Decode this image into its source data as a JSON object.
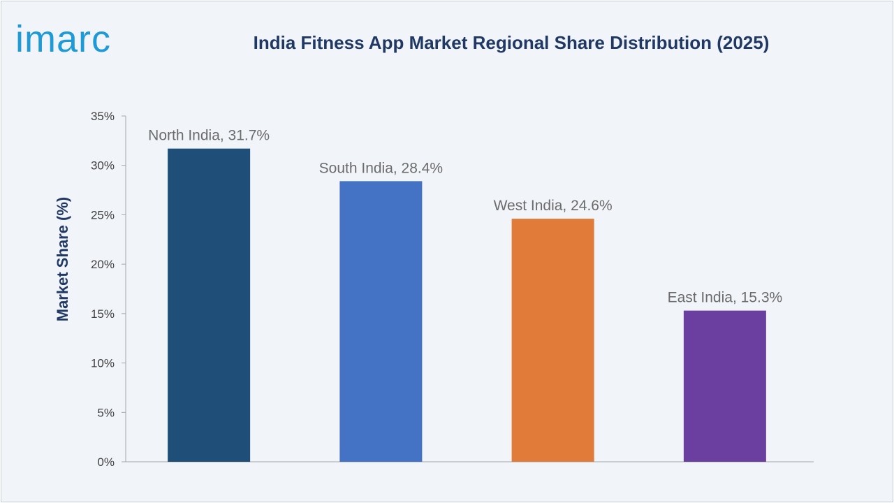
{
  "brand": {
    "logo_text": "imarc",
    "logo_color": "#1e9ad6"
  },
  "chart_data": {
    "type": "bar",
    "title": "India Fitness App Market Regional Share Distribution (2025)",
    "ylabel": "Market Share (%)",
    "xlabel": "",
    "ylim": [
      0,
      35
    ],
    "yticks": [
      0,
      5,
      10,
      15,
      20,
      25,
      30,
      35
    ],
    "ytick_labels": [
      "0%",
      "5%",
      "10%",
      "15%",
      "20%",
      "25%",
      "30%",
      "35%"
    ],
    "categories": [
      "North India",
      "South India",
      "West India",
      "East India"
    ],
    "values": [
      31.7,
      28.4,
      24.6,
      15.3
    ],
    "data_labels": [
      "North India, 31.7%",
      "South India, 28.4%",
      "West India, 24.6%",
      "East India, 15.3%"
    ],
    "colors": [
      "#1f4e79",
      "#4472c4",
      "#e07b39",
      "#6b3fa0"
    ],
    "grid": false,
    "legend": "none"
  }
}
